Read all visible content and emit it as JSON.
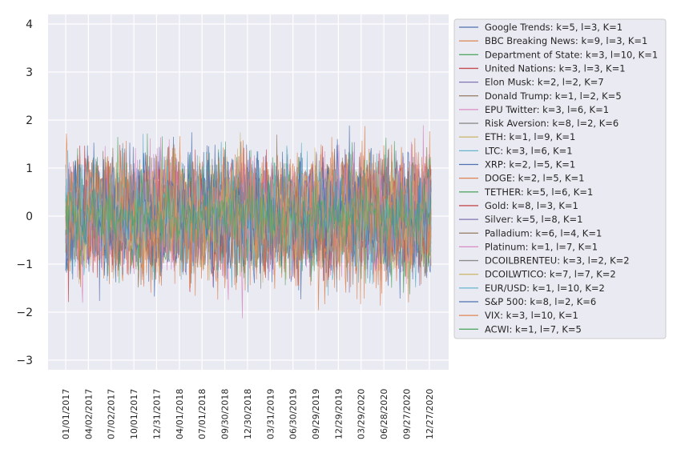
{
  "chart_data": {
    "type": "line",
    "title": "",
    "xlabel": "",
    "ylabel": "",
    "ylim": [
      -3.2,
      4.2
    ],
    "yticks": [
      -3,
      -2,
      -1,
      0,
      1,
      2,
      3,
      4
    ],
    "ytick_labels": [
      "−3",
      "−2",
      "−1",
      "0",
      "1",
      "2",
      "3",
      "4"
    ],
    "x_range": [
      "2017-01-01",
      "2021-01-03"
    ],
    "xticks": [
      "2017-01-01",
      "2017-04-02",
      "2017-07-02",
      "2017-10-01",
      "2017-12-31",
      "2018-04-01",
      "2018-07-01",
      "2018-09-30",
      "2018-12-30",
      "2019-03-31",
      "2019-06-30",
      "2019-09-29",
      "2019-12-29",
      "2020-03-29",
      "2020-06-28",
      "2020-09-27",
      "2020-12-27"
    ],
    "xtick_labels": [
      "01/01/2017",
      "04/02/2017",
      "07/02/2017",
      "10/01/2017",
      "12/31/2017",
      "04/01/2018",
      "07/01/2018",
      "09/30/2018",
      "12/30/2018",
      "03/31/2019",
      "06/30/2019",
      "09/29/2019",
      "12/29/2019",
      "03/29/2020",
      "06/28/2020",
      "09/27/2020",
      "12/27/2020"
    ],
    "grid": true,
    "legend_position": "right, outside plot",
    "series": [
      {
        "name": "Google Trends: k=5, l=3, K=1",
        "color": "#4c72b0",
        "amplitude": 1.0
      },
      {
        "name": "BBC Breaking News: k=9, l=3, K=1",
        "color": "#dd8452",
        "amplitude": 1.1
      },
      {
        "name": "Department of State: k=3, l=10, K=1",
        "color": "#55a868",
        "amplitude": 0.95
      },
      {
        "name": "United Nations: k=3, l=3, K=1",
        "color": "#c44e52",
        "amplitude": 0.9
      },
      {
        "name": "Elon Musk: k=2, l=2, K=7",
        "color": "#8172b3",
        "amplitude": 0.85
      },
      {
        "name": "Donald Trump: k=1, l=2, K=5",
        "color": "#937860",
        "amplitude": 0.85
      },
      {
        "name": "EPU Twitter: k=3, l=6, K=1",
        "color": "#da8bc3",
        "amplitude": 1.0
      },
      {
        "name": "Risk Aversion: k=8, l=2, K=6",
        "color": "#8c8c8c",
        "amplitude": 0.8
      },
      {
        "name": "ETH: k=1, l=9, K=1",
        "color": "#ccb974",
        "amplitude": 0.8
      },
      {
        "name": "LTC: k=3, l=6, K=1",
        "color": "#64b5cd",
        "amplitude": 0.9
      },
      {
        "name": "XRP: k=2, l=5, K=1",
        "color": "#4c72b0",
        "amplitude": 0.9
      },
      {
        "name": "DOGE: k=2, l=5, K=1",
        "color": "#dd8452",
        "amplitude": 0.95
      },
      {
        "name": "TETHER: k=5, l=6, K=1",
        "color": "#55a868",
        "amplitude": 0.9
      },
      {
        "name": "Gold: k=8, l=3, K=1",
        "color": "#c44e52",
        "amplitude": 0.85
      },
      {
        "name": "Silver: k=5, l=8, K=1",
        "color": "#8172b3",
        "amplitude": 0.85
      },
      {
        "name": "Palladium: k=6, l=4, K=1",
        "color": "#937860",
        "amplitude": 0.85
      },
      {
        "name": "Platinum: k=1, l=7, K=1",
        "color": "#da8bc3",
        "amplitude": 0.9
      },
      {
        "name": "DCOILBRENTEU: k=3, l=2, K=2",
        "color": "#8c8c8c",
        "amplitude": 0.8
      },
      {
        "name": "DCOILWTICO: k=7, l=7, K=2",
        "color": "#ccb974",
        "amplitude": 0.8
      },
      {
        "name": "EUR/USD: k=1, l=10, K=2",
        "color": "#64b5cd",
        "amplitude": 0.85
      },
      {
        "name": "S&P 500: k=8, l=2, K=6",
        "color": "#4c72b0",
        "amplitude": 0.9
      },
      {
        "name": "VIX: k=3, l=10, K=1",
        "color": "#dd8452",
        "amplitude": 1.05
      },
      {
        "name": "ACWI: k=1, l=7, K=5",
        "color": "#55a868",
        "amplitude": 0.45
      }
    ]
  }
}
